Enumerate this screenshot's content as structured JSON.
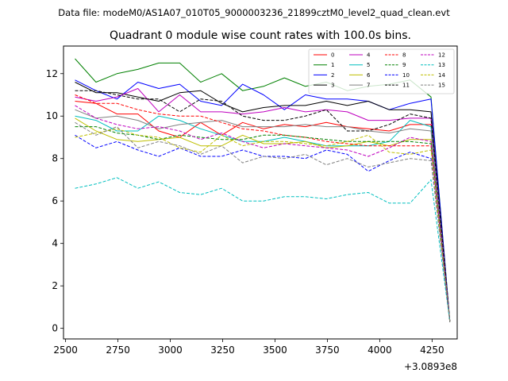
{
  "chart_data": {
    "type": "line",
    "suptitle": "Data file: modeM0/AS1A07_010T05_9000003236_21899cztM0_level2_quad_clean.evt",
    "title": "Quadrant 0 module wise count rates with 100.0s bins.",
    "xlabel": "",
    "ylabel": "",
    "x_offset_label": "+3.0893e8",
    "xlim": [
      2490,
      4370
    ],
    "ylim": [
      -0.5,
      13.3
    ],
    "xticks": [
      2500,
      2750,
      3000,
      3250,
      3500,
      3750,
      4000,
      4250
    ],
    "yticks": [
      0,
      2,
      4,
      6,
      8,
      10,
      12
    ],
    "x": [
      2545,
      2645,
      2745,
      2845,
      2945,
      3045,
      3145,
      3245,
      3345,
      3445,
      3545,
      3645,
      3745,
      3845,
      3945,
      4045,
      4145,
      4245,
      4335
    ],
    "legend_position": "upper right",
    "series": [
      {
        "name": "0",
        "color": "#ff0000",
        "dashed": false,
        "values": [
          10.7,
          10.6,
          10.1,
          10.1,
          9.3,
          9.0,
          9.7,
          9.1,
          9.7,
          9.4,
          9.6,
          9.5,
          9.7,
          9.5,
          9.4,
          9.3,
          9.6,
          9.6,
          0.3
        ]
      },
      {
        "name": "1",
        "color": "#008000",
        "dashed": false,
        "values": [
          12.7,
          11.6,
          12.0,
          12.2,
          12.5,
          12.5,
          11.6,
          12.0,
          11.2,
          11.4,
          11.8,
          11.4,
          11.6,
          11.2,
          11.4,
          11.5,
          11.7,
          10.9,
          0.3
        ]
      },
      {
        "name": "2",
        "color": "#0000ff",
        "dashed": false,
        "values": [
          11.7,
          11.2,
          10.8,
          11.6,
          11.3,
          11.5,
          10.7,
          10.5,
          11.5,
          11.0,
          10.3,
          11.0,
          10.8,
          10.8,
          10.7,
          10.3,
          10.6,
          10.8,
          0.3
        ]
      },
      {
        "name": "3",
        "color": "#000000",
        "dashed": false,
        "values": [
          11.6,
          11.1,
          11.1,
          10.9,
          10.7,
          11.1,
          11.2,
          10.6,
          10.2,
          10.4,
          10.5,
          10.5,
          10.7,
          10.5,
          10.7,
          10.3,
          10.3,
          10.2,
          0.3
        ]
      },
      {
        "name": "4",
        "color": "#bf00bf",
        "dashed": false,
        "values": [
          10.9,
          10.7,
          10.9,
          11.3,
          10.2,
          11.0,
          10.2,
          10.2,
          10.1,
          10.2,
          10.4,
          10.2,
          10.3,
          10.2,
          9.8,
          9.8,
          9.9,
          9.9,
          0.3
        ]
      },
      {
        "name": "5",
        "color": "#00bfbf",
        "dashed": false,
        "values": [
          10.0,
          9.8,
          9.3,
          9.3,
          10.0,
          9.8,
          9.4,
          9.1,
          8.8,
          8.8,
          9.0,
          8.8,
          8.6,
          8.6,
          8.6,
          8.8,
          9.8,
          9.5,
          0.3
        ]
      },
      {
        "name": "6",
        "color": "#bfbf00",
        "dashed": false,
        "values": [
          9.9,
          9.3,
          8.9,
          8.8,
          8.9,
          9.0,
          8.6,
          8.6,
          9.1,
          8.7,
          8.7,
          8.8,
          8.5,
          8.6,
          8.8,
          8.6,
          8.9,
          8.9,
          0.3
        ]
      },
      {
        "name": "7",
        "color": "#808080",
        "dashed": false,
        "values": [
          10.3,
          9.9,
          10.0,
          9.8,
          9.4,
          9.6,
          9.7,
          9.8,
          9.5,
          9.5,
          9.5,
          9.6,
          9.5,
          9.5,
          9.3,
          9.2,
          9.4,
          9.3,
          0.3
        ]
      },
      {
        "name": "8",
        "color": "#ff0000",
        "dashed": true,
        "values": [
          11.0,
          10.6,
          10.6,
          10.3,
          10.1,
          10.0,
          10.0,
          9.7,
          9.4,
          9.3,
          9.1,
          9.0,
          8.8,
          8.7,
          8.6,
          8.6,
          8.6,
          8.6,
          0.3
        ]
      },
      {
        "name": "9",
        "color": "#008000",
        "dashed": true,
        "values": [
          9.5,
          9.5,
          9.2,
          9.1,
          8.9,
          9.1,
          9.0,
          8.9,
          8.9,
          9.1,
          9.1,
          9.0,
          8.9,
          8.8,
          8.8,
          8.8,
          8.8,
          8.7,
          0.3
        ]
      },
      {
        "name": "10",
        "color": "#0000ff",
        "dashed": true,
        "values": [
          9.1,
          8.5,
          8.8,
          8.4,
          8.1,
          8.5,
          8.1,
          8.1,
          8.4,
          8.1,
          8.1,
          8.0,
          8.4,
          8.2,
          7.4,
          7.9,
          8.3,
          8.0,
          0.3
        ]
      },
      {
        "name": "11",
        "color": "#000000",
        "dashed": true,
        "values": [
          11.2,
          11.2,
          11.0,
          10.8,
          10.8,
          10.2,
          10.8,
          10.7,
          10.0,
          9.8,
          9.8,
          10.0,
          10.3,
          9.3,
          9.3,
          9.6,
          10.1,
          9.9,
          0.3
        ]
      },
      {
        "name": "12",
        "color": "#bf00bf",
        "dashed": true,
        "values": [
          10.5,
          9.9,
          9.6,
          9.4,
          9.5,
          9.3,
          8.9,
          9.2,
          8.8,
          8.5,
          8.7,
          8.6,
          8.5,
          8.4,
          8.1,
          8.5,
          9.0,
          8.8,
          0.3
        ]
      },
      {
        "name": "13",
        "color": "#00bfbf",
        "dashed": true,
        "values": [
          6.6,
          6.8,
          7.1,
          6.6,
          6.9,
          6.4,
          6.3,
          6.6,
          6.0,
          6.0,
          6.2,
          6.2,
          6.1,
          6.3,
          6.4,
          5.9,
          5.9,
          7.0,
          0.3
        ]
      },
      {
        "name": "14",
        "color": "#bfbf00",
        "dashed": true,
        "values": [
          9.0,
          9.2,
          9.4,
          9.1,
          9.0,
          8.5,
          8.3,
          9.1,
          8.6,
          8.8,
          8.8,
          8.7,
          8.6,
          8.8,
          9.1,
          8.3,
          8.2,
          8.4,
          0.3
        ]
      },
      {
        "name": "15",
        "color": "#808080",
        "dashed": true,
        "values": [
          9.7,
          9.1,
          9.5,
          8.5,
          8.8,
          8.6,
          8.2,
          8.6,
          7.8,
          8.1,
          8.0,
          8.2,
          7.7,
          8.0,
          7.6,
          7.8,
          8.0,
          7.9,
          0.3
        ]
      }
    ]
  }
}
